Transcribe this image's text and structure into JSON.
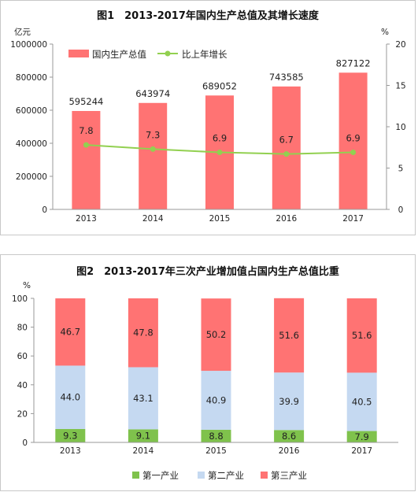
{
  "chart_data": [
    {
      "type": "bar",
      "title": "图1　2013-2017年国内生产总值及其增长速度",
      "categories": [
        "2013",
        "2014",
        "2015",
        "2016",
        "2017"
      ],
      "left_unit": "亿元",
      "right_unit": "%",
      "ylim": [
        0,
        1000000
      ],
      "yticks": [
        "0",
        "200000",
        "400000",
        "600000",
        "800000",
        "1000000"
      ],
      "y2lim": [
        0,
        20
      ],
      "y2ticks": [
        "0",
        "5",
        "10",
        "15",
        "20"
      ],
      "legend_placement": "top",
      "series": [
        {
          "name": "国内生产总值",
          "type": "bar",
          "axis": "left",
          "color": "#ff7373",
          "values": [
            595244,
            643974,
            689052,
            743585,
            827122
          ]
        },
        {
          "name": "比上年增长",
          "type": "line",
          "axis": "right",
          "color": "#92d050",
          "values": [
            7.8,
            7.3,
            6.9,
            6.7,
            6.9
          ]
        }
      ]
    },
    {
      "type": "bar",
      "stacked": true,
      "title": "图2　2013-2017年三次产业增加值占国内生产总值比重",
      "categories": [
        "2013",
        "2014",
        "2015",
        "2016",
        "2017"
      ],
      "unit": "%",
      "ylim": [
        0,
        100
      ],
      "yticks": [
        "0",
        "20",
        "40",
        "60",
        "80",
        "100"
      ],
      "legend_placement": "bottom",
      "series": [
        {
          "name": "第一产业",
          "color": "#7fc24c",
          "values": [
            9.3,
            9.1,
            8.8,
            8.6,
            7.9
          ]
        },
        {
          "name": "第二产业",
          "color": "#c5d9f1",
          "values": [
            44.0,
            43.1,
            40.9,
            39.9,
            40.5
          ]
        },
        {
          "name": "第三产业",
          "color": "#ff7373",
          "values": [
            46.7,
            47.8,
            50.2,
            51.6,
            51.6
          ]
        }
      ]
    }
  ]
}
